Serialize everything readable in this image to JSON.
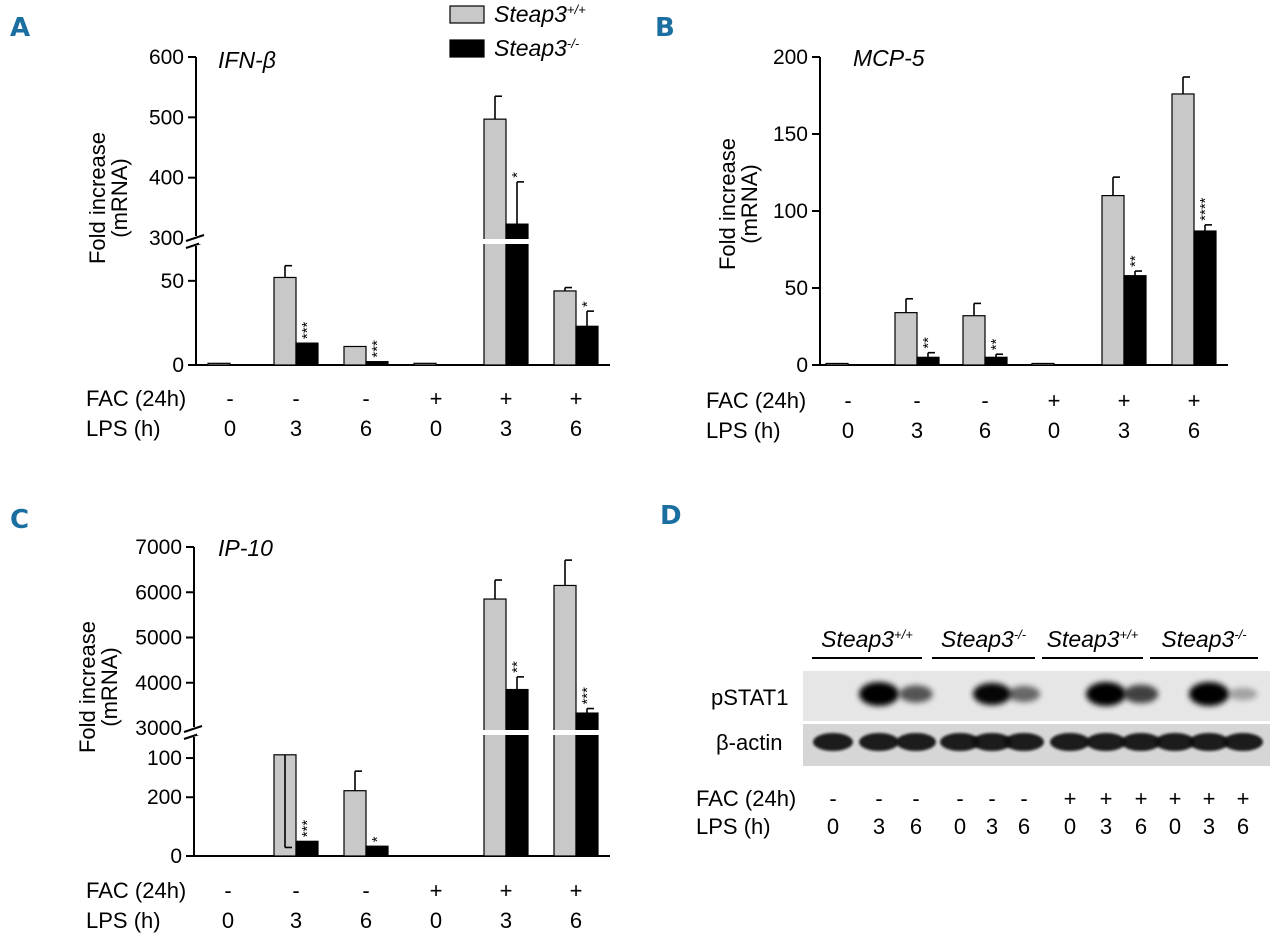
{
  "colors": {
    "wt": "#c8c8c8",
    "ko": "#000000",
    "panel_label": "#1a6fa0"
  },
  "legend": {
    "wt": {
      "label": "Steap3",
      "sup": "+/+"
    },
    "ko": {
      "label": "Steap3",
      "sup": "-/-"
    }
  },
  "conditions": {
    "row1_label": "FAC (24h)",
    "row2_label": "LPS (h)",
    "fac": [
      "-",
      "-",
      "-",
      "+",
      "+",
      "+"
    ],
    "lps": [
      "0",
      "3",
      "6",
      "0",
      "3",
      "6"
    ]
  },
  "chart_data": [
    {
      "panel": "A",
      "type": "bar",
      "title": "IFN-β",
      "ylabel": [
        "Fold increase",
        "(mRNA)"
      ],
      "axis_break": true,
      "lower_ticks": [
        "0",
        "50"
      ],
      "upper_ticks": [
        "300",
        "400",
        "500",
        "600"
      ],
      "lower_range": [
        0,
        60
      ],
      "upper_range": [
        300,
        600
      ],
      "categories": [
        "FAC-/LPS0",
        "FAC-/LPS3",
        "FAC-/LPS6",
        "FAC+/LPS0",
        "FAC+/LPS3",
        "FAC+/LPS6"
      ],
      "series": [
        {
          "name": "Steap3+/+",
          "values": [
            1,
            52,
            11,
            1,
            497,
            44
          ],
          "errors": [
            0,
            7,
            0,
            0,
            38,
            2
          ]
        },
        {
          "name": "Steap3-/-",
          "values": [
            0,
            13,
            2,
            0,
            323,
            23
          ],
          "errors": [
            0,
            0,
            0,
            0,
            70,
            9
          ]
        }
      ],
      "significance": [
        "",
        "***",
        "***",
        "",
        "*",
        "*"
      ]
    },
    {
      "panel": "B",
      "type": "bar",
      "title": "MCP-5",
      "ylabel": [
        "Fold increase",
        "(mRNA)"
      ],
      "axis_break": false,
      "ticks": [
        "0",
        "50",
        "100",
        "150",
        "200"
      ],
      "ylim": [
        0,
        200
      ],
      "categories": [
        "FAC-/LPS0",
        "FAC-/LPS3",
        "FAC-/LPS6",
        "FAC+/LPS0",
        "FAC+/LPS3",
        "FAC+/LPS6"
      ],
      "series": [
        {
          "name": "Steap3+/+",
          "values": [
            1,
            34,
            32,
            1,
            110,
            176
          ],
          "errors": [
            0,
            9,
            8,
            0,
            12,
            11
          ]
        },
        {
          "name": "Steap3-/-",
          "values": [
            0,
            5,
            5,
            0,
            58,
            87
          ],
          "errors": [
            0,
            3,
            2,
            0,
            3,
            4
          ]
        }
      ],
      "significance": [
        "",
        "**",
        "**",
        "",
        "**",
        "****"
      ]
    },
    {
      "panel": "C",
      "type": "bar",
      "title": "IP-10",
      "ylabel": [
        "Fold increase",
        "(mRNA)"
      ],
      "axis_break": true,
      "lower_ticks": [
        "0",
        "200",
        "100"
      ],
      "upper_ticks": [
        "3000",
        "4000",
        "5000",
        "6000",
        "7000"
      ],
      "lower_range": [
        0,
        340
      ],
      "upper_range": [
        3000,
        7000
      ],
      "categories": [
        "FAC-/LPS0",
        "FAC-/LPS3",
        "FAC-/LPS6",
        "FAC+/LPS0",
        "FAC+/LPS3",
        "FAC+/LPS6"
      ],
      "series": [
        {
          "name": "Steap3+/+",
          "values": [
            0,
            310,
            200,
            0,
            5850,
            6150
          ],
          "errors": [
            0,
            50,
            60,
            0,
            420,
            560
          ]
        },
        {
          "name": "Steap3-/-",
          "values": [
            0,
            45,
            30,
            0,
            3850,
            3330
          ],
          "errors": [
            0,
            0,
            0,
            0,
            280,
            100
          ]
        }
      ],
      "significance": [
        "",
        "***",
        "*",
        "",
        "**",
        "***"
      ]
    }
  ],
  "panels": {
    "A": "A",
    "B": "B",
    "C": "C",
    "D": "D"
  },
  "blot": {
    "groups": [
      {
        "label": "Steap3",
        "sup": "+/+"
      },
      {
        "label": "Steap3",
        "sup": "-/-"
      },
      {
        "label": "Steap3",
        "sup": "+/+"
      },
      {
        "label": "Steap3",
        "sup": "-/-"
      }
    ],
    "rows": [
      "pSTAT1",
      "β-actin"
    ],
    "pstat1_intensity": [
      0,
      1,
      0.45,
      0,
      0.85,
      0.35,
      0,
      1,
      0.55,
      0,
      1,
      0.05
    ],
    "fac_label": "FAC (24h)",
    "lps_label": "LPS (h)",
    "fac": [
      "-",
      "-",
      "-",
      "-",
      "-",
      "-",
      "+",
      "+",
      "+",
      "+",
      "+",
      "+"
    ],
    "lps": [
      "0",
      "3",
      "6",
      "0",
      "3",
      "6",
      "0",
      "3",
      "6",
      "0",
      "3",
      "6"
    ]
  }
}
